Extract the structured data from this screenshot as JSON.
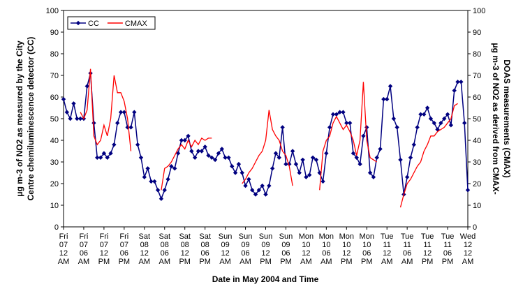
{
  "chart_data": {
    "type": "line",
    "x_label": "Date in May 2004 and Time",
    "y_label": [
      "μg m-3 of NO2 as measured by the City",
      "Centre chemiluminescence detector (CC)"
    ],
    "y2_label": [
      "μg m-3 of NO2 as derived from CMAX-",
      "DOAS measurements (CMAX)"
    ],
    "categories": [
      "Fri 07 12 AM",
      null,
      null,
      null,
      null,
      null,
      "Fri 07 06 AM",
      null,
      null,
      null,
      null,
      null,
      "Fri 07 12 PM",
      null,
      null,
      null,
      null,
      null,
      "Fri 07 06 PM",
      null,
      null,
      null,
      null,
      null,
      "Sat 08 12 AM",
      null,
      null,
      null,
      null,
      null,
      "Sat 08 06 AM",
      null,
      null,
      null,
      null,
      null,
      "Sat 08 12 PM",
      null,
      null,
      null,
      null,
      null,
      "Sat 08 06 PM",
      null,
      null,
      null,
      null,
      null,
      "Sun 09 12 AM",
      null,
      null,
      null,
      null,
      null,
      "Sun 09 06 AM",
      null,
      null,
      null,
      null,
      null,
      "Sun 09 12 PM",
      null,
      null,
      null,
      null,
      null,
      "Sun 09 06 PM",
      null,
      null,
      null,
      null,
      null,
      "Mon 10 12 AM",
      null,
      null,
      null,
      null,
      null,
      "Mon 10 06 AM",
      null,
      null,
      null,
      null,
      null,
      "Mon 10 12 PM",
      null,
      null,
      null,
      null,
      null,
      "Mon 10 06 PM",
      null,
      null,
      null,
      null,
      null,
      "Tue 11 12 AM",
      null,
      null,
      null,
      null,
      null,
      "Tue 11 06 AM",
      null,
      null,
      null,
      null,
      null,
      "Tue 11 12 PM",
      null,
      null,
      null,
      null,
      null,
      "Tue 11 06 PM",
      null,
      null,
      null,
      null,
      null,
      "Wed 12 12 AM"
    ],
    "series": [
      {
        "name": "CC",
        "color": "#000080",
        "marker": "diamond",
        "values": [
          59,
          53,
          50,
          57,
          50,
          50,
          50,
          65,
          71,
          48,
          32,
          32,
          34,
          32,
          34,
          38,
          48,
          53,
          53,
          46,
          46,
          53,
          38,
          32,
          23,
          27,
          21,
          21,
          17,
          13,
          17,
          22,
          28,
          27,
          34,
          40,
          40,
          42,
          35,
          32,
          35,
          35,
          37,
          33,
          32,
          31,
          34,
          36,
          32,
          32,
          28,
          25,
          29,
          25,
          19,
          22,
          17,
          15,
          17,
          19,
          15,
          19,
          27,
          34,
          32,
          46,
          29,
          29,
          35,
          29,
          25,
          31,
          23,
          24,
          32,
          31,
          25,
          21,
          34,
          46,
          52,
          52,
          53,
          53,
          48,
          48,
          34,
          32,
          29,
          42,
          46,
          25,
          23,
          32,
          36,
          59,
          59,
          65,
          50,
          46,
          31,
          15,
          23,
          32,
          38,
          46,
          52,
          52,
          55,
          50,
          48,
          45,
          48,
          50,
          52,
          47,
          63,
          67,
          67,
          48,
          17
        ]
      },
      {
        "name": "CMAX",
        "color": "#ff0000",
        "axis": "y2",
        "values": [
          null,
          null,
          null,
          null,
          null,
          53,
          50,
          54,
          73,
          42,
          38,
          40,
          47,
          42,
          50,
          70,
          62,
          62,
          58,
          50,
          35,
          null,
          null,
          null,
          null,
          null,
          null,
          null,
          null,
          17,
          27,
          28,
          30,
          33,
          36,
          38,
          36,
          40,
          37,
          40,
          38,
          41,
          40,
          41,
          41,
          null,
          null,
          null,
          null,
          null,
          null,
          null,
          null,
          20,
          22,
          25,
          27,
          30,
          33,
          35,
          40,
          54,
          45,
          42,
          40,
          35,
          33,
          28,
          19,
          null,
          null,
          null,
          null,
          null,
          null,
          null,
          17,
          35,
          40,
          42,
          48,
          51,
          48,
          45,
          47,
          44,
          40,
          33,
          40,
          67,
          40,
          32,
          31,
          30,
          null,
          null,
          null,
          null,
          null,
          null,
          9,
          15,
          20,
          22,
          25,
          28,
          30,
          35,
          38,
          42,
          42,
          44,
          45,
          46,
          48,
          50,
          56,
          57,
          null,
          null,
          null
        ]
      }
    ],
    "ylim": [
      0,
      100
    ],
    "yticks": [
      0,
      10,
      20,
      30,
      40,
      50,
      60,
      70,
      80,
      90,
      100
    ],
    "y2lim": [
      0,
      100
    ],
    "y2ticks": [
      0,
      10,
      20,
      30,
      40,
      50,
      60,
      70,
      80,
      90,
      100
    ],
    "grid": false,
    "legend": "top-left"
  }
}
